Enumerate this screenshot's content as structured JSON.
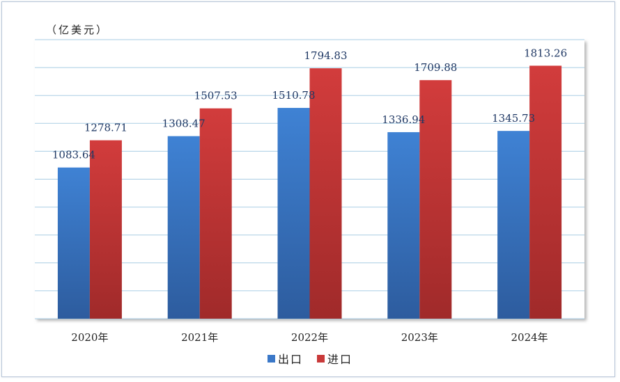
{
  "chart_data": {
    "type": "bar",
    "title": "",
    "unit_label": "（亿美元）",
    "categories": [
      "2020年",
      "2021年",
      "2022年",
      "2023年",
      "2024年"
    ],
    "series": [
      {
        "name": "出口",
        "values": [
          1083.64,
          1308.47,
          1510.78,
          1336.94,
          1345.73
        ],
        "color": "#3b78c8"
      },
      {
        "name": "进口",
        "values": [
          1278.71,
          1507.53,
          1794.83,
          1709.88,
          1813.26
        ],
        "color": "#c93a3a"
      }
    ],
    "ylim": [
      0,
      2000
    ],
    "grid": true,
    "legend_position": "bottom"
  }
}
